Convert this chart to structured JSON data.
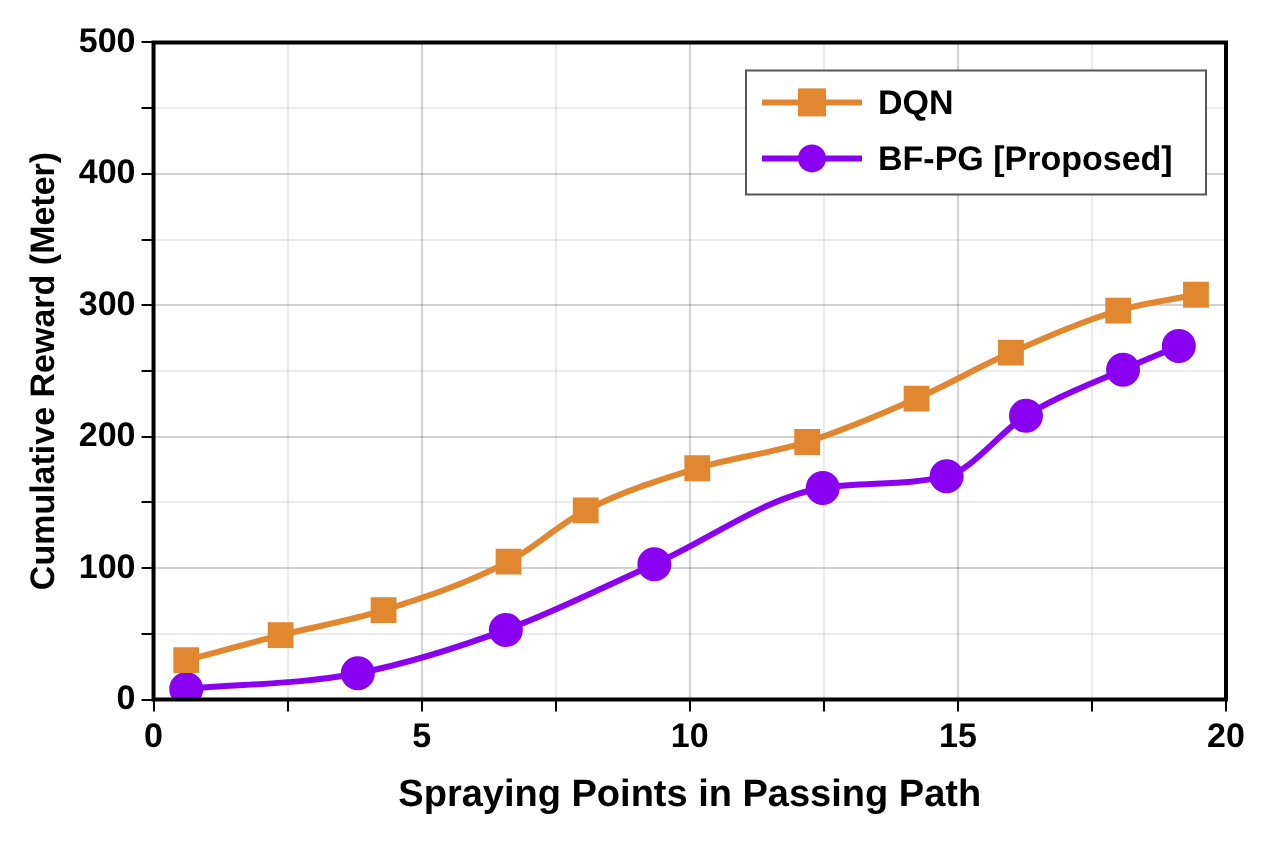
{
  "chart_data": {
    "type": "line",
    "xlabel": "Spraying Points in Passing Path",
    "ylabel": "Cumulative Reward (Meter)",
    "xlim": [
      0,
      20
    ],
    "xticks": [
      0,
      {
        "value": 2.5,
        "label": null
      },
      5,
      {
        "value": 7.5,
        "label": null
      },
      10,
      {
        "value": 12.5,
        "label": null
      },
      15,
      {
        "value": 17.5,
        "label": null
      },
      20
    ],
    "ylim": [
      0,
      500
    ],
    "yticks": [
      0,
      {
        "value": 50,
        "label": null
      },
      100,
      {
        "value": 150,
        "label": null
      },
      200,
      {
        "value": 250,
        "label": null
      },
      300,
      {
        "value": 350,
        "label": null
      },
      400,
      {
        "value": 450,
        "label": null
      },
      500
    ],
    "grid": true,
    "legend": "top right",
    "series": [
      {
        "name": "DQN",
        "color": "#e0872f",
        "marker": "square",
        "x": [
          0.61,
          2.37,
          4.29,
          6.62,
          8.06,
          10.14,
          12.19,
          14.23,
          15.99,
          17.99,
          19.44
        ],
        "values": [
          30,
          49,
          68,
          105,
          144,
          176,
          196,
          229,
          264,
          296,
          308
        ]
      },
      {
        "name": "BF-PG [Proposed]",
        "color": "#8a00f0",
        "marker": "circle",
        "x": [
          0.61,
          3.81,
          6.57,
          9.34,
          12.48,
          14.79,
          16.27,
          18.08,
          19.12
        ],
        "values": [
          8,
          20,
          53,
          103,
          161,
          170,
          216,
          251,
          269
        ]
      }
    ]
  }
}
